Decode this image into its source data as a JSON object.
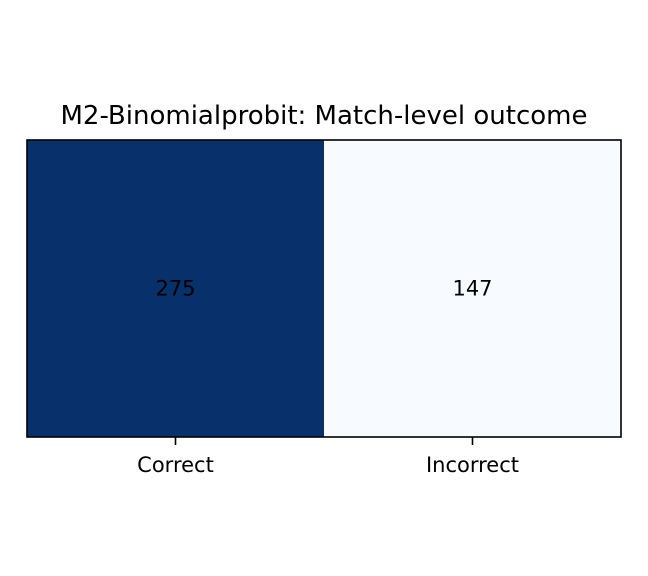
{
  "chart_data": {
    "type": "heatmap",
    "title": "M2-Binomialprobit: Match-level outcome",
    "categories": [
      "Correct",
      "Incorrect"
    ],
    "values": [
      275,
      147
    ],
    "colormap": "Blues",
    "colors": [
      "#08306b",
      "#f7fbff"
    ],
    "label_colors": [
      "#000000",
      "#000000"
    ],
    "xlabel": "",
    "ylabel": "",
    "grid": false
  }
}
